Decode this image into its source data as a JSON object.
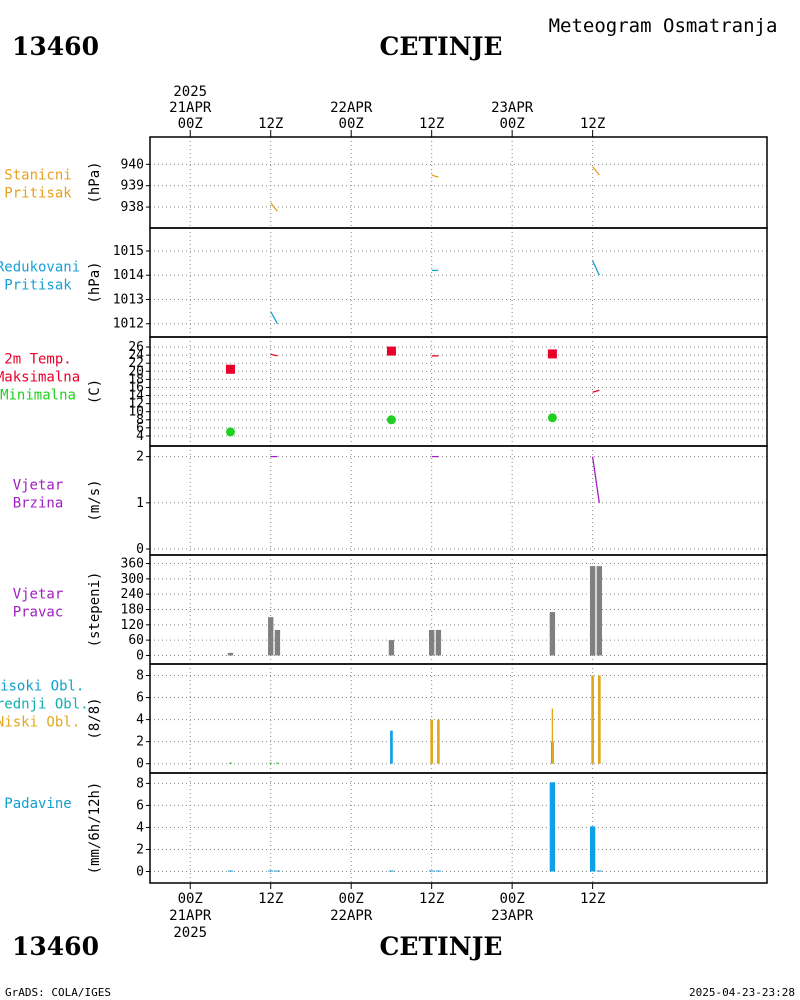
{
  "header": {
    "station_id": "13460",
    "station_name": "CETINJE",
    "subtitle": "Meteogram Osmatranja"
  },
  "footer": {
    "station_id": "13460",
    "station_name": "CETINJE",
    "credit": "GrADS: COLA/IGES",
    "timestamp": "2025-04-23-23:28"
  },
  "colors": {
    "orange": "#e8a020",
    "cyan": "#1aa0d8",
    "red": "#e8002a",
    "green": "#20d020",
    "purple": "#a020c0",
    "gray": "#808080",
    "blue": "#10a0e8",
    "gold": "#e0a820"
  },
  "chart_data": {
    "type": "meteogram",
    "x_axis": {
      "range_hours": [
        -6,
        86
      ],
      "top_ticks": [
        {
          "hour": 0,
          "lines": [
            "2025",
            "21APR",
            "00Z"
          ]
        },
        {
          "hour": 12,
          "lines": [
            "12Z"
          ]
        },
        {
          "hour": 24,
          "lines": [
            "22APR",
            "00Z"
          ]
        },
        {
          "hour": 36,
          "lines": [
            "12Z"
          ]
        },
        {
          "hour": 48,
          "lines": [
            "23APR",
            "00Z"
          ]
        },
        {
          "hour": 60,
          "lines": [
            "12Z"
          ]
        }
      ],
      "bottom_ticks": [
        {
          "hour": 0,
          "lines": [
            "00Z",
            "21APR",
            "2025"
          ]
        },
        {
          "hour": 12,
          "lines": [
            "12Z"
          ]
        },
        {
          "hour": 24,
          "lines": [
            "00Z",
            "22APR"
          ]
        },
        {
          "hour": 36,
          "lines": [
            "12Z"
          ]
        },
        {
          "hour": 48,
          "lines": [
            "00Z",
            "23APR"
          ]
        },
        {
          "hour": 60,
          "lines": [
            "12Z"
          ]
        }
      ]
    },
    "panels": [
      {
        "id": "station-pressure",
        "labels": [
          {
            "text": "Stanicni",
            "color": "#e8a020"
          },
          {
            "text": "Pritisak",
            "color": "#e8a020"
          }
        ],
        "unit": "(hPa)",
        "ylim": [
          937.3,
          941
        ],
        "yticks": [
          {
            "v": 938,
            "t": "938"
          },
          {
            "v": 939,
            "t": "939"
          },
          {
            "v": 940,
            "t": "940"
          }
        ],
        "series": [
          {
            "color": "#e8a020",
            "points": [
              [
                12,
                938.2
              ],
              [
                13,
                937.8
              ]
            ]
          },
          {
            "color": "#e8a020",
            "points": [
              [
                36,
                939.5
              ],
              [
                37,
                939.4
              ]
            ]
          },
          {
            "color": "#e8a020",
            "points": [
              [
                60,
                939.9
              ],
              [
                61,
                939.5
              ]
            ]
          }
        ]
      },
      {
        "id": "reduced-pressure",
        "labels": [
          {
            "text": "Redukovani",
            "color": "#1aa0d8"
          },
          {
            "text": "Pritisak",
            "color": "#1aa0d8"
          }
        ],
        "unit": "(hPa)",
        "ylim": [
          1011.7,
          1015.7
        ],
        "yticks": [
          {
            "v": 1012,
            "t": "1012"
          },
          {
            "v": 1013,
            "t": "1013"
          },
          {
            "v": 1014,
            "t": "1014"
          },
          {
            "v": 1015,
            "t": "1015"
          }
        ],
        "series": [
          {
            "color": "#1aa0d8",
            "points": [
              [
                12,
                1012.5
              ],
              [
                13,
                1012.0
              ]
            ]
          },
          {
            "color": "#1aa0d8",
            "points": [
              [
                36,
                1014.2
              ],
              [
                37,
                1014.2
              ]
            ]
          },
          {
            "color": "#1aa0d8",
            "points": [
              [
                60,
                1014.6
              ],
              [
                61,
                1014.0
              ]
            ]
          }
        ]
      },
      {
        "id": "temperature",
        "labels": [
          {
            "text": "2m Temp.",
            "color": "#e8002a"
          },
          {
            "text": "Maksimalna",
            "color": "#e8002a"
          },
          {
            "text": "Minimalna",
            "color": "#20d020"
          }
        ],
        "unit": "(C)",
        "ylim": [
          3,
          27
        ],
        "yticks": [
          {
            "v": 4,
            "t": "4"
          },
          {
            "v": 6,
            "t": "6"
          },
          {
            "v": 8,
            "t": "8"
          },
          {
            "v": 10,
            "t": "10"
          },
          {
            "v": 12,
            "t": "12"
          },
          {
            "v": 14,
            "t": "14"
          },
          {
            "v": 16,
            "t": "16"
          },
          {
            "v": 18,
            "t": "18"
          },
          {
            "v": 20,
            "t": "20"
          },
          {
            "v": 22,
            "t": "22"
          },
          {
            "v": 24,
            "t": "24"
          },
          {
            "v": 26,
            "t": "26"
          }
        ],
        "series": [
          {
            "color": "#e8002a",
            "points": [
              [
                12,
                24.2
              ],
              [
                13,
                23.8
              ]
            ]
          },
          {
            "color": "#e8002a",
            "points": [
              [
                36,
                23.8
              ],
              [
                37,
                23.8
              ]
            ]
          },
          {
            "color": "#e8002a",
            "points": [
              [
                60,
                14.8
              ],
              [
                61,
                15.3
              ]
            ]
          }
        ],
        "max_points": [
          {
            "h": 6,
            "v": 20.5
          },
          {
            "h": 30,
            "v": 25.0
          },
          {
            "h": 54,
            "v": 24.3
          }
        ],
        "min_points": [
          {
            "h": 6,
            "v": 5.0
          },
          {
            "h": 30,
            "v": 8.0
          },
          {
            "h": 54,
            "v": 8.5
          }
        ]
      },
      {
        "id": "wind-speed",
        "labels": [
          {
            "text": "Vjetar",
            "color": "#a020c0"
          },
          {
            "text": "Brzina",
            "color": "#a020c0"
          }
        ],
        "unit": "(m/s)",
        "ylim": [
          0,
          2.1
        ],
        "yticks": [
          {
            "v": 0,
            "t": "0"
          },
          {
            "v": 1,
            "t": "1"
          },
          {
            "v": 2,
            "t": "2"
          }
        ],
        "series": [
          {
            "color": "#a020c0",
            "points": [
              [
                12,
                2.0
              ],
              [
                13,
                2.0
              ]
            ]
          },
          {
            "color": "#a020c0",
            "points": [
              [
                36,
                2.0
              ],
              [
                37,
                2.0
              ]
            ]
          },
          {
            "color": "#a020c0",
            "points": [
              [
                60,
                2.0
              ],
              [
                61,
                1.0
              ]
            ]
          }
        ]
      },
      {
        "id": "wind-direction",
        "labels": [
          {
            "text": "Vjetar",
            "color": "#a020c0"
          },
          {
            "text": "Pravac",
            "color": "#a020c0"
          }
        ],
        "unit": "(stepeni)",
        "ylim": [
          -10,
          370
        ],
        "yticks": [
          {
            "v": 0,
            "t": "0"
          },
          {
            "v": 60,
            "t": "60"
          },
          {
            "v": 120,
            "t": "120"
          },
          {
            "v": 180,
            "t": "180"
          },
          {
            "v": 240,
            "t": "240"
          },
          {
            "v": 300,
            "t": "300"
          },
          {
            "v": 360,
            "t": "360"
          }
        ],
        "bars": [
          {
            "h": 6,
            "v": 10,
            "color": "#808080"
          },
          {
            "h": 12,
            "v": 150,
            "color": "#808080"
          },
          {
            "h": 13,
            "v": 100,
            "color": "#808080"
          },
          {
            "h": 30,
            "v": 60,
            "color": "#808080"
          },
          {
            "h": 36,
            "v": 100,
            "color": "#808080"
          },
          {
            "h": 37,
            "v": 100,
            "color": "#808080"
          },
          {
            "h": 54,
            "v": 170,
            "color": "#808080"
          },
          {
            "h": 60,
            "v": 350,
            "color": "#808080"
          },
          {
            "h": 61,
            "v": 350,
            "color": "#808080"
          }
        ],
        "bar_width": 0.8
      },
      {
        "id": "cloud-cover",
        "labels": [
          {
            "text": "Visoki Obl.",
            "color": "#10a0d0"
          },
          {
            "text": "Srednji Obl.",
            "color": "#10b0b0"
          },
          {
            "text": "Niski Obl.",
            "color": "#e0a820"
          }
        ],
        "unit": "(8/8)",
        "ylim": [
          -0.3,
          8.5
        ],
        "yticks": [
          {
            "v": 0,
            "t": "0"
          },
          {
            "v": 2,
            "t": "2"
          },
          {
            "v": 4,
            "t": "4"
          },
          {
            "v": 6,
            "t": "6"
          },
          {
            "v": 8,
            "t": "8"
          }
        ],
        "bars": [
          {
            "h": 6,
            "v": 0.1,
            "color": "#20d020"
          },
          {
            "h": 12,
            "v": 0.1,
            "color": "#20d020"
          },
          {
            "h": 13,
            "v": 0.1,
            "color": "#20d020"
          },
          {
            "h": 30,
            "v": 3.0,
            "color": "#10a0e8"
          },
          {
            "h": 36,
            "v": 4.0,
            "color": "#e0a820"
          },
          {
            "h": 37,
            "v": 4.0,
            "color": "#e0a820"
          },
          {
            "h": 54,
            "v": 2.0,
            "color": "#20d020"
          },
          {
            "h": 54,
            "v": 5.0,
            "color": "#e0a820",
            "thin": true
          },
          {
            "h": 60,
            "v": 8.0,
            "color": "#e0a820"
          },
          {
            "h": 61,
            "v": 8.0,
            "color": "#e0a820"
          }
        ],
        "bar_width": 0.4
      },
      {
        "id": "precipitation",
        "labels": [
          {
            "text": "Padavine",
            "color": "#10a0d0"
          }
        ],
        "unit": "(mm/6h/12h)",
        "ylim": [
          -0.5,
          8.4
        ],
        "yticks": [
          {
            "v": 0,
            "t": "0"
          },
          {
            "v": 2,
            "t": "2"
          },
          {
            "v": 4,
            "t": "4"
          },
          {
            "v": 6,
            "t": "6"
          },
          {
            "v": 8,
            "t": "8"
          }
        ],
        "bars": [
          {
            "h": 6,
            "v": 0.05,
            "color": "#10a0e8"
          },
          {
            "h": 12,
            "v": 0.05,
            "color": "#10a0e8"
          },
          {
            "h": 13,
            "v": 0.05,
            "color": "#10a0e8"
          },
          {
            "h": 30,
            "v": 0.05,
            "color": "#10a0e8"
          },
          {
            "h": 36,
            "v": 0.05,
            "color": "#10a0e8"
          },
          {
            "h": 37,
            "v": 0.05,
            "color": "#10a0e8"
          },
          {
            "h": 54,
            "v": 8.1,
            "color": "#10a0e8"
          },
          {
            "h": 60,
            "v": 4.1,
            "color": "#10a0e8"
          },
          {
            "h": 61,
            "v": 0.05,
            "color": "#10a0e8"
          }
        ],
        "bar_width": 0.8
      }
    ]
  }
}
